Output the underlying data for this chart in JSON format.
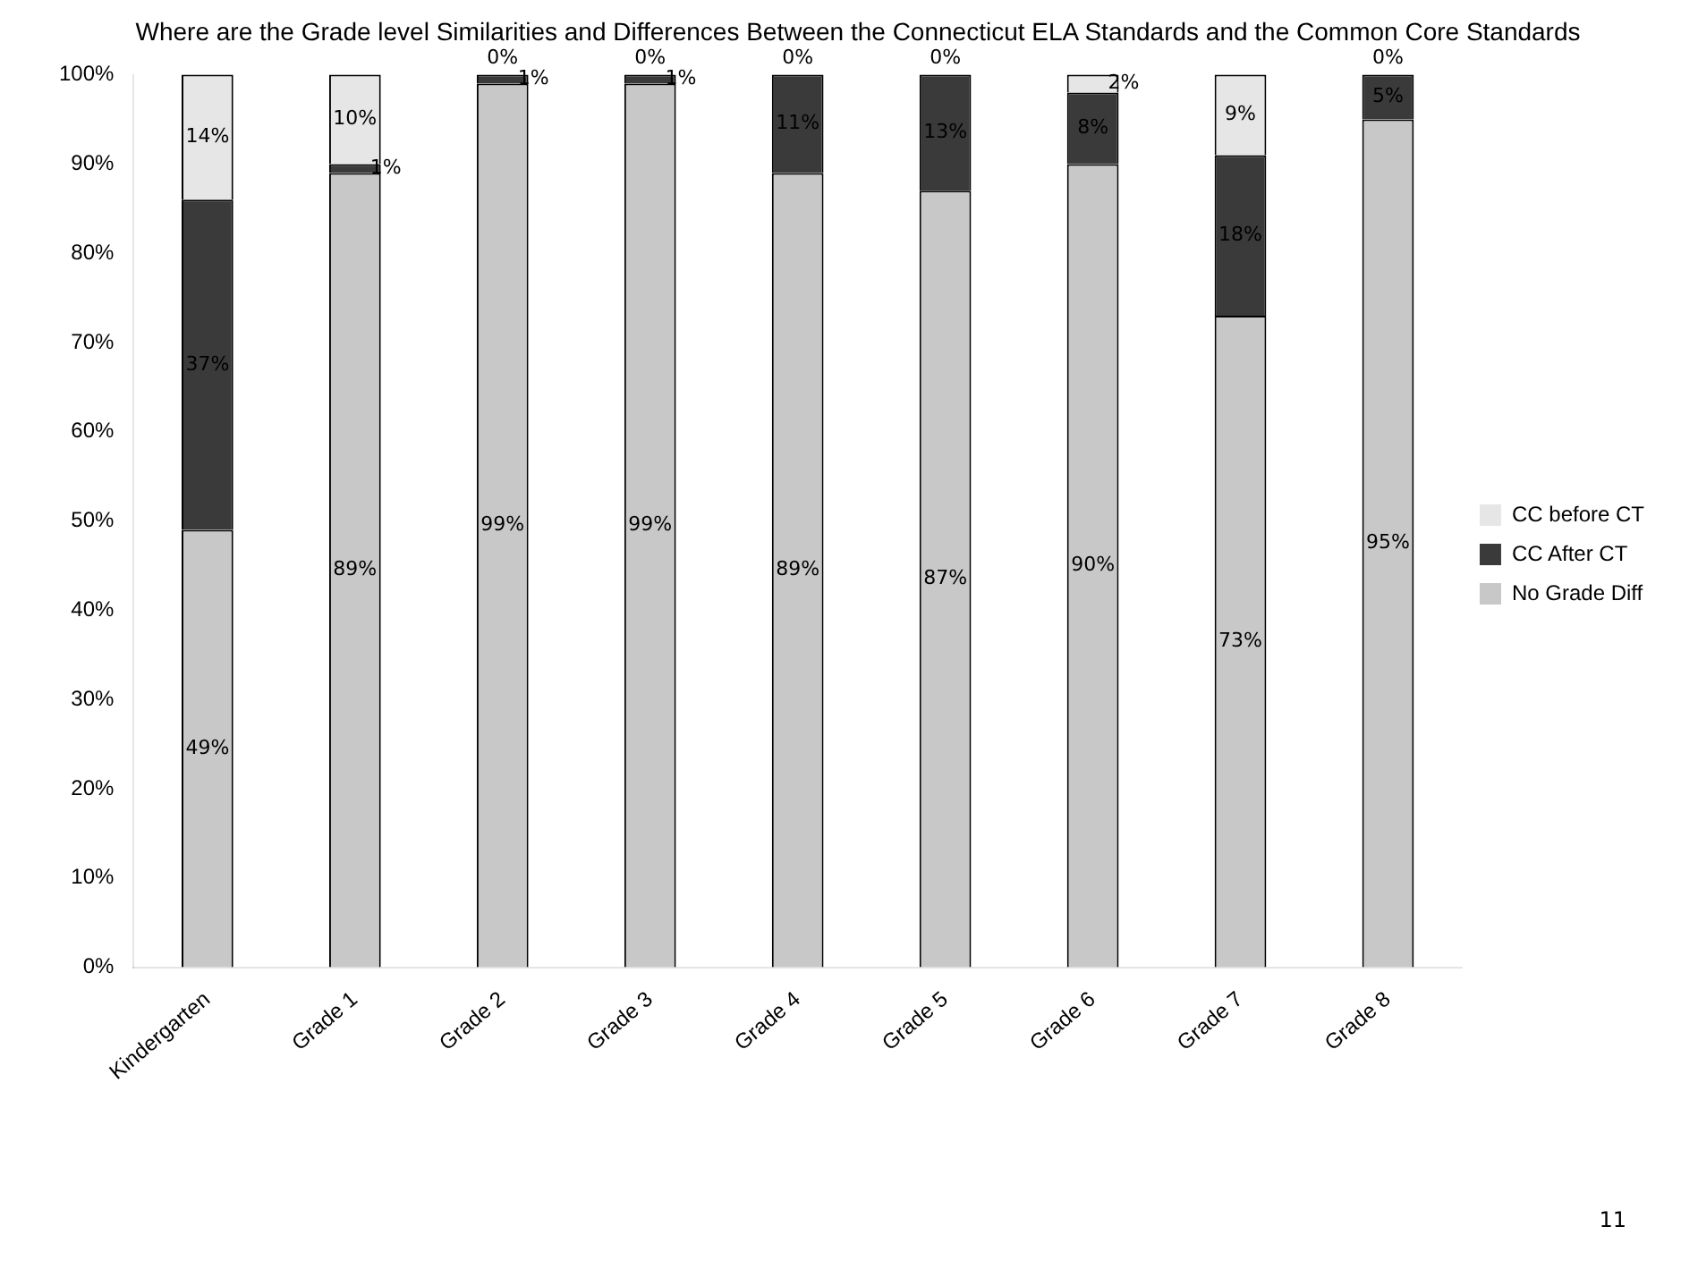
{
  "chart_data": {
    "type": "bar",
    "title": "Where are the Grade level Similarities and Differences Between the Connecticut ELA Standards and the Common Core Standards",
    "categories": [
      "Kindergarten",
      "Grade 1",
      "Grade 2",
      "Grade 3",
      "Grade 4",
      "Grade 5",
      "Grade 6",
      "Grade 7",
      "Grade 8"
    ],
    "stacked": true,
    "series": [
      {
        "name": "No Grade Diff",
        "color": "#c8c8c8",
        "values": [
          49,
          89,
          99,
          99,
          89,
          87,
          90,
          73,
          95
        ],
        "value_labels": [
          "49%",
          "89%",
          "99%",
          "99%",
          "89%",
          "87%",
          "90%",
          "73%",
          "95%"
        ]
      },
      {
        "name": "CC After CT",
        "color": "#3a3a3a",
        "values": [
          37,
          1,
          1,
          1,
          11,
          13,
          8,
          18,
          5
        ],
        "value_labels": [
          "37%",
          "1%",
          "1%",
          "1%",
          "11%",
          "13%",
          "8%",
          "18%",
          "5%"
        ]
      },
      {
        "name": "CC before CT",
        "color": "#e6e6e6",
        "values": [
          14,
          10,
          0,
          0,
          0,
          0,
          2,
          9,
          0
        ],
        "value_labels": [
          "14%",
          "10%",
          "0%",
          "0%",
          "0%",
          "0%",
          "2%",
          "9%",
          "0%"
        ]
      }
    ],
    "ylim": [
      0,
      100
    ],
    "yticks": [
      {
        "value": 0,
        "label": "0%"
      },
      {
        "value": 10,
        "label": "10%"
      },
      {
        "value": 20,
        "label": "20%"
      },
      {
        "value": 30,
        "label": "30%"
      },
      {
        "value": 40,
        "label": "40%"
      },
      {
        "value": 50,
        "label": "50%"
      },
      {
        "value": 60,
        "label": "60%"
      },
      {
        "value": 70,
        "label": "70%"
      },
      {
        "value": 80,
        "label": "80%"
      },
      {
        "value": 90,
        "label": "90%"
      },
      {
        "value": 100,
        "label": "100%"
      }
    ],
    "grid": false,
    "legend": "right",
    "annotations": [
      "11"
    ]
  }
}
